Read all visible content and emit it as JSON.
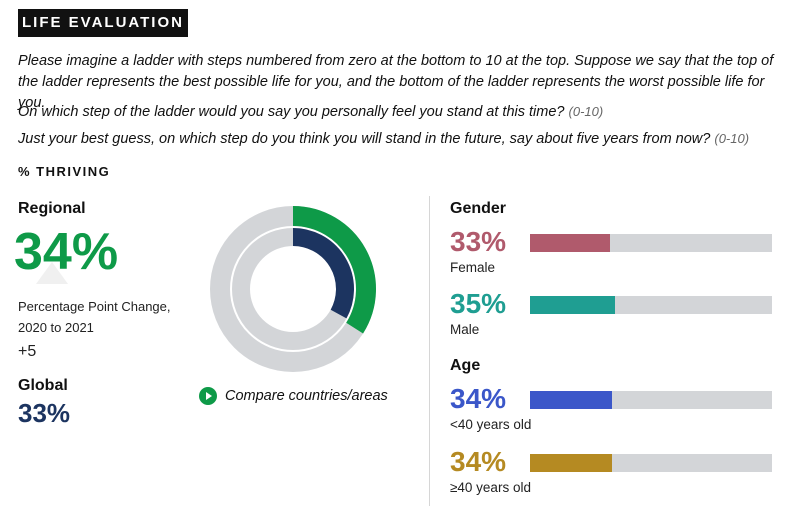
{
  "header": {
    "tag": "LIFE EVALUATION"
  },
  "questions": {
    "intro": "Please imagine a ladder with steps numbered from zero at the bottom to 10 at the top. Suppose we say that the top of the ladder represents the best possible life for you, and the bottom of the ladder represents the worst possible life for you.",
    "q1_text": "On which step of the ladder would you say you personally feel you stand at this time?",
    "q1_range": "(0-10)",
    "q2_text": "Just your best guess, on which step do you think you will stand in the future, say about five years from now?",
    "q2_range": "(0-10)"
  },
  "subhead": "% THRIVING",
  "regional": {
    "label": "Regional",
    "value": "34%",
    "change_label": "Percentage Point Change, 2020 to 2021",
    "change_value": "+5"
  },
  "global": {
    "label": "Global",
    "value": "33%"
  },
  "compare_link": "Compare countries/areas",
  "groups": {
    "gender_label": "Gender",
    "age_label": "Age"
  },
  "colors": {
    "regional": "#0e9a48",
    "global": "#1c3460",
    "track": "#d3d5d8",
    "female": "#b05a6c",
    "male": "#1f9e92",
    "under40": "#3b57c9",
    "over40": "#b58a22"
  },
  "chart_data": [
    {
      "type": "donut",
      "rings": [
        {
          "name": "Regional",
          "value": 34,
          "color": "#0e9a48"
        },
        {
          "name": "Global",
          "value": 33,
          "color": "#1c3460"
        }
      ],
      "max": 100
    },
    {
      "type": "bar",
      "orientation": "horizontal",
      "max": 100,
      "bars": [
        {
          "group": "Gender",
          "category": "Female",
          "value": 33,
          "label": "33%",
          "color": "#b05a6c"
        },
        {
          "group": "Gender",
          "category": "Male",
          "value": 35,
          "label": "35%",
          "color": "#1f9e92"
        },
        {
          "group": "Age",
          "category": "<40 years old",
          "value": 34,
          "label": "34%",
          "color": "#3b57c9"
        },
        {
          "group": "Age",
          "category": "≥40 years old",
          "value": 34,
          "label": "34%",
          "color": "#b58a22"
        }
      ]
    }
  ]
}
